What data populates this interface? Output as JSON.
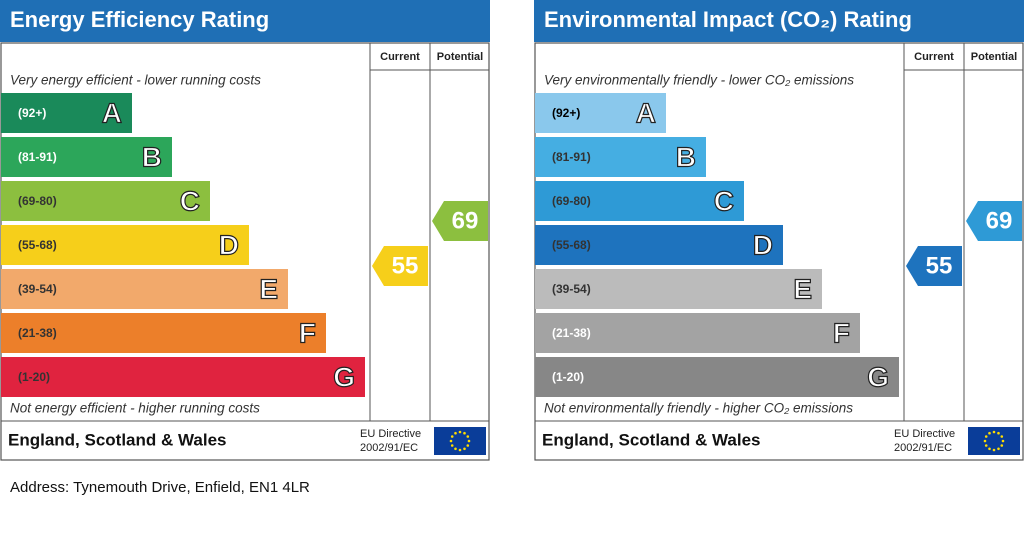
{
  "panels": [
    {
      "title": "Energy Efficiency Rating",
      "current_header": "Current",
      "potential_header": "Potential",
      "top_text": "Very energy efficient - lower running costs",
      "bottom_text": "Not energy efficient - higher running costs",
      "bands": [
        {
          "range": "(92+)",
          "letter": "A",
          "color": "#1a8a5a",
          "text_color": "#ffffff"
        },
        {
          "range": "(81-91)",
          "letter": "B",
          "color": "#2ca65a",
          "text_color": "#ffffff"
        },
        {
          "range": "(69-80)",
          "letter": "C",
          "color": "#8cbf3f",
          "text_color": "#333333"
        },
        {
          "range": "(55-68)",
          "letter": "D",
          "color": "#f6cf1a",
          "text_color": "#333333"
        },
        {
          "range": "(39-54)",
          "letter": "E",
          "color": "#f2a96b",
          "text_color": "#333333"
        },
        {
          "range": "(21-38)",
          "letter": "F",
          "color": "#ec7f2a",
          "text_color": "#333333"
        },
        {
          "range": "(1-20)",
          "letter": "G",
          "color": "#e0233f",
          "text_color": "#333333"
        }
      ],
      "current": 55,
      "current_color": "#f6cf1a",
      "potential": 69,
      "potential_color": "#8cbf3f",
      "region": "England, Scotland & Wales",
      "directive": [
        "EU Directive",
        "2002/91/EC"
      ]
    },
    {
      "title": "Environmental Impact (CO₂) Rating",
      "current_header": "Current",
      "potential_header": "Potential",
      "top_text": "Very environmentally friendly - lower CO₂ emissions",
      "bottom_text": "Not environmentally friendly - higher CO₂ emissions",
      "bands": [
        {
          "range": "(92+)",
          "letter": "A",
          "color": "#8ac8ec",
          "text_color": "#000000"
        },
        {
          "range": "(81-91)",
          "letter": "B",
          "color": "#45aee2",
          "text_color": "#333333"
        },
        {
          "range": "(69-80)",
          "letter": "C",
          "color": "#2e9ad6",
          "text_color": "#333333"
        },
        {
          "range": "(55-68)",
          "letter": "D",
          "color": "#1e73be",
          "text_color": "#333333"
        },
        {
          "range": "(39-54)",
          "letter": "E",
          "color": "#bbbbbb",
          "text_color": "#333333"
        },
        {
          "range": "(21-38)",
          "letter": "F",
          "color": "#a3a3a3",
          "text_color": "#ffffff"
        },
        {
          "range": "(1-20)",
          "letter": "G",
          "color": "#878787",
          "text_color": "#ffffff"
        }
      ],
      "current": 55,
      "current_color": "#1e73be",
      "potential": 69,
      "potential_color": "#2e9ad6",
      "region": "England, Scotland & Wales",
      "directive": [
        "EU Directive",
        "2002/91/EC"
      ]
    }
  ],
  "address": "Address: Tynemouth Drive, Enfield, EN1 4LR"
}
